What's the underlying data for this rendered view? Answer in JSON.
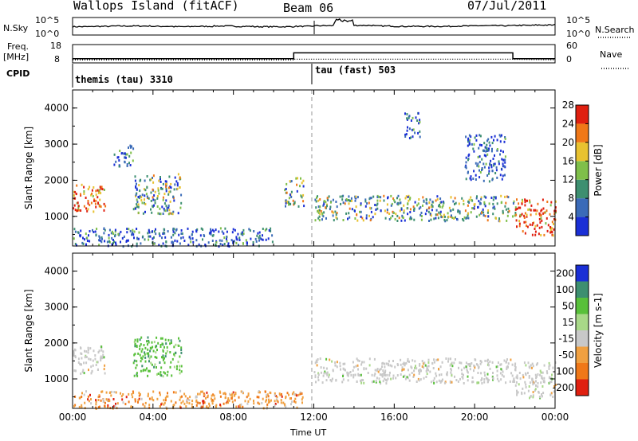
{
  "header": {
    "title": "Wallops Island (fitACF)",
    "beam": "Beam 06",
    "date": "07/Jul/2011"
  },
  "left_labels": {
    "nsky": "N.Sky",
    "freq": "Freq.",
    "freq_unit": "[MHz]",
    "cpid": "CPID"
  },
  "right_labels": {
    "nsearch": "N.Search",
    "nave": "Nave"
  },
  "noise_ticks": {
    "left": [
      "10^5",
      "10^0"
    ],
    "right": [
      "10^5",
      "10^0"
    ]
  },
  "freq_ticks": {
    "left": [
      "18",
      "8"
    ],
    "right": [
      "60",
      "0"
    ]
  },
  "cpid_blocks": [
    {
      "label": "themis (tau) 3310",
      "start_hour": 0
    },
    {
      "label": "tau (fast) 503",
      "start_hour": 11.9
    }
  ],
  "x_axis": {
    "ticks": [
      "00:00",
      "04:00",
      "08:00",
      "12:00",
      "16:00",
      "20:00",
      "00:00"
    ],
    "label": "Time UT"
  },
  "chart_data": [
    {
      "type": "heatmap",
      "panel": "power",
      "ylabel": "Slant Range [km]",
      "yticks": [
        "1000",
        "2000",
        "3000",
        "4000"
      ],
      "ylim": [
        180,
        4500
      ],
      "xlim_hours": [
        0,
        24
      ],
      "colorbar": {
        "label": "Power [dB]",
        "ticks": [
          "4",
          "8",
          "12",
          "16",
          "20",
          "24",
          "28"
        ],
        "colors": [
          "#1a2fd6",
          "#3b6bb8",
          "#3d8f70",
          "#7fbf4a",
          "#e8c230",
          "#f07818",
          "#e02010"
        ]
      },
      "echo_regions": [
        {
          "t": [
            0.0,
            1.6
          ],
          "r": [
            1150,
            1950
          ],
          "level": "high"
        },
        {
          "t": [
            2.0,
            3.0
          ],
          "r": [
            2400,
            3000
          ],
          "level": "low"
        },
        {
          "t": [
            3.0,
            5.4
          ],
          "r": [
            1100,
            2200
          ],
          "level": "mid"
        },
        {
          "t": [
            0.0,
            10.0
          ],
          "r": [
            200,
            700
          ],
          "level": "low"
        },
        {
          "t": [
            10.5,
            11.5
          ],
          "r": [
            1300,
            2100
          ],
          "level": "mid"
        },
        {
          "t": [
            12.0,
            22.0
          ],
          "r": [
            900,
            1600
          ],
          "level": "mid"
        },
        {
          "t": [
            16.5,
            17.3
          ],
          "r": [
            3200,
            3900
          ],
          "level": "low"
        },
        {
          "t": [
            19.5,
            21.5
          ],
          "r": [
            2000,
            3300
          ],
          "level": "low"
        },
        {
          "t": [
            22.0,
            24.0
          ],
          "r": [
            500,
            1500
          ],
          "level": "high"
        }
      ]
    },
    {
      "type": "heatmap",
      "panel": "velocity",
      "ylabel": "Slant Range [km]",
      "yticks": [
        "1000",
        "2000",
        "3000",
        "4000"
      ],
      "ylim": [
        180,
        4500
      ],
      "xlim_hours": [
        0,
        24
      ],
      "colorbar": {
        "label": "Velocity [m s-1]",
        "ticks": [
          "200",
          "100",
          "50",
          "15",
          "-15",
          "-50",
          "-100",
          "-200"
        ],
        "colors": [
          "#1a2fd6",
          "#3d8f70",
          "#58c03a",
          "#a8d888",
          "#c8c8c8",
          "#f0a040",
          "#f07818",
          "#e02010"
        ]
      },
      "echo_regions": [
        {
          "t": [
            0.0,
            1.6
          ],
          "r": [
            1150,
            1950
          ],
          "level": "-15"
        },
        {
          "t": [
            3.0,
            5.4
          ],
          "r": [
            1100,
            2200
          ],
          "level": "50"
        },
        {
          "t": [
            0.0,
            11.5
          ],
          "r": [
            200,
            700
          ],
          "level": "-50"
        },
        {
          "t": [
            12.0,
            22.0
          ],
          "r": [
            900,
            1600
          ],
          "level": "-15"
        },
        {
          "t": [
            22.0,
            24.0
          ],
          "r": [
            500,
            1500
          ],
          "level": "-15"
        }
      ]
    }
  ],
  "noise_sky_series": [
    2.5,
    2.6,
    2.7,
    2.7,
    2.6,
    2.5,
    2.6,
    2.7,
    2.6,
    2.5,
    2.5,
    2.6,
    2.8,
    3.6,
    2.9,
    2.7,
    2.6,
    2.6,
    2.6,
    2.7,
    2.8,
    2.8,
    2.9,
    3.0,
    3.1
  ],
  "freq_series": {
    "before": 10.3,
    "after": 13.5,
    "switch_hour": 11.0,
    "end_hour": 21.9
  },
  "nave_series": {
    "before": 10,
    "after": 12
  }
}
